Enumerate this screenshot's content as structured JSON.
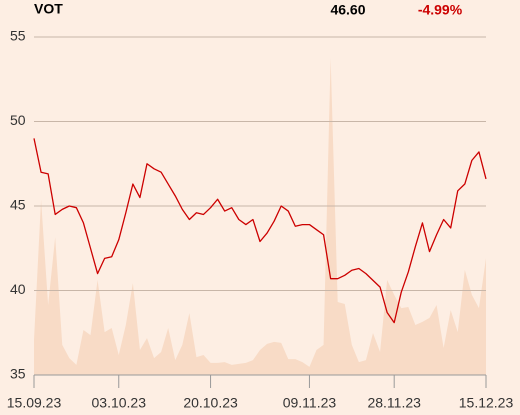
{
  "chart_data": {
    "type": "line",
    "title": "VOT",
    "price": "46.60",
    "change": "-4.99%",
    "categories": [
      "15.09.23",
      null,
      null,
      null,
      null,
      null,
      null,
      null,
      null,
      null,
      null,
      null,
      "03.10.23",
      null,
      null,
      null,
      null,
      null,
      null,
      null,
      null,
      null,
      null,
      null,
      null,
      "20.10.23",
      null,
      null,
      null,
      null,
      null,
      null,
      null,
      null,
      null,
      null,
      null,
      null,
      null,
      "09.11.23",
      null,
      null,
      null,
      null,
      null,
      null,
      null,
      null,
      null,
      null,
      null,
      "28.11.23",
      null,
      null,
      null,
      null,
      null,
      null,
      null,
      null,
      null,
      null,
      null,
      null,
      "15.12.23"
    ],
    "series": [
      {
        "color": "#cc0000",
        "values": [
          49.0,
          47.0,
          46.9,
          44.5,
          44.8,
          45.0,
          44.9,
          44.0,
          42.5,
          41.0,
          41.9,
          42.0,
          43.0,
          44.6,
          46.3,
          45.5,
          47.5,
          47.2,
          47.0,
          46.3,
          45.6,
          44.8,
          44.2,
          44.6,
          44.5,
          44.9,
          45.4,
          44.7,
          44.9,
          44.2,
          43.9,
          44.2,
          42.9,
          43.4,
          44.1,
          45.0,
          44.7,
          43.8,
          43.9,
          43.9,
          43.6,
          43.3,
          40.7,
          40.7,
          40.9,
          41.2,
          41.3,
          41.0,
          40.6,
          40.2,
          38.7,
          38.1,
          39.9,
          41.1,
          42.6,
          44.0,
          42.3,
          43.3,
          44.2,
          43.7,
          45.9,
          46.3,
          47.7,
          48.2,
          46.6
        ]
      },
      {
        "color": "#f8dbc6",
        "axis": "y2",
        "values": [
          10.4,
          51.8,
          20.7,
          40.8,
          8.9,
          5.0,
          3.0,
          13.3,
          11.8,
          28.1,
          12.7,
          13.9,
          5.9,
          14.8,
          27.2,
          7.4,
          10.9,
          5.0,
          6.8,
          13.9,
          4.4,
          8.9,
          18.3,
          5.3,
          5.9,
          3.6,
          3.6,
          3.8,
          3.0,
          3.3,
          3.6,
          4.4,
          7.4,
          9.2,
          9.8,
          9.5,
          4.7,
          4.7,
          3.8,
          2.4,
          7.4,
          8.9,
          93.8,
          21.6,
          21.0,
          8.9,
          3.8,
          4.4,
          12.4,
          6.8,
          28.1,
          23.7,
          19.8,
          20.1,
          14.8,
          15.7,
          16.9,
          20.7,
          8.0,
          19.2,
          12.7,
          31.1,
          23.7,
          19.8,
          34.6
        ]
      }
    ],
    "ylim": [
      35,
      55
    ],
    "yticks": [
      35,
      40,
      45,
      50,
      55
    ],
    "y2lim": [
      0,
      100
    ],
    "grid": true
  }
}
